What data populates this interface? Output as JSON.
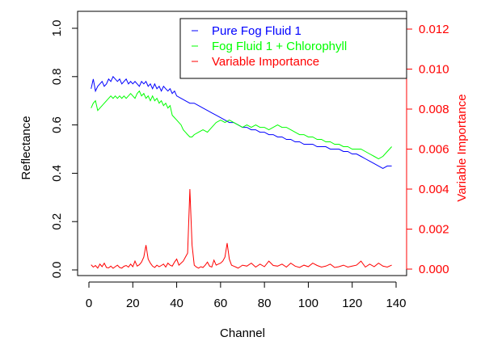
{
  "chart_data": {
    "type": "line",
    "title": "",
    "xlabel": "Channel",
    "ylabel": "Reflectance",
    "y2label": "Variable Importance",
    "xlim": [
      0,
      140
    ],
    "ylim": [
      0,
      1.0
    ],
    "y2lim": [
      0,
      0.012
    ],
    "x_ticks": [
      "0",
      "20",
      "40",
      "60",
      "80",
      "100",
      "120",
      "140"
    ],
    "y_ticks": [
      "0.0",
      "0.2",
      "0.4",
      "0.6",
      "0.8",
      "1.0"
    ],
    "y2_ticks": [
      "0.000",
      "0.002",
      "0.004",
      "0.006",
      "0.008",
      "0.010",
      "0.012"
    ],
    "grid": false,
    "legend_position": "top-right",
    "legend": [
      {
        "label": "Pure Fog Fluid 1",
        "color": "#0000ff"
      },
      {
        "label": "Fog Fluid 1 + Chlorophyll",
        "color": "#00ff00"
      },
      {
        "label": "Variable Importance",
        "color": "#ff0000"
      }
    ],
    "series": [
      {
        "name": "Pure Fog Fluid 1",
        "axis": "left",
        "color": "#0000ff",
        "x": [
          1,
          2,
          3,
          4,
          5,
          6,
          7,
          8,
          9,
          10,
          11,
          12,
          13,
          14,
          15,
          16,
          17,
          18,
          19,
          20,
          21,
          22,
          23,
          24,
          25,
          26,
          27,
          28,
          29,
          30,
          31,
          32,
          33,
          34,
          35,
          36,
          37,
          38,
          39,
          40,
          42,
          44,
          46,
          48,
          50,
          52,
          54,
          56,
          58,
          60,
          62,
          64,
          66,
          68,
          70,
          72,
          74,
          76,
          78,
          80,
          82,
          84,
          86,
          88,
          90,
          92,
          94,
          96,
          98,
          100,
          102,
          104,
          106,
          108,
          110,
          112,
          114,
          116,
          118,
          120,
          122,
          124,
          126,
          128,
          130,
          132,
          134,
          136,
          138
        ],
        "values": [
          0.75,
          0.79,
          0.74,
          0.76,
          0.77,
          0.78,
          0.76,
          0.77,
          0.79,
          0.78,
          0.8,
          0.79,
          0.78,
          0.79,
          0.77,
          0.78,
          0.79,
          0.77,
          0.78,
          0.77,
          0.78,
          0.77,
          0.76,
          0.78,
          0.77,
          0.78,
          0.76,
          0.77,
          0.75,
          0.77,
          0.75,
          0.76,
          0.74,
          0.76,
          0.75,
          0.74,
          0.75,
          0.73,
          0.74,
          0.72,
          0.71,
          0.7,
          0.69,
          0.69,
          0.68,
          0.67,
          0.66,
          0.65,
          0.64,
          0.63,
          0.62,
          0.61,
          0.61,
          0.6,
          0.59,
          0.59,
          0.58,
          0.58,
          0.57,
          0.57,
          0.56,
          0.56,
          0.55,
          0.55,
          0.54,
          0.54,
          0.53,
          0.53,
          0.52,
          0.52,
          0.52,
          0.51,
          0.51,
          0.51,
          0.5,
          0.5,
          0.5,
          0.49,
          0.49,
          0.48,
          0.48,
          0.47,
          0.46,
          0.45,
          0.44,
          0.43,
          0.42,
          0.43,
          0.43
        ]
      },
      {
        "name": "Fog Fluid 1 + Chlorophyll",
        "axis": "left",
        "color": "#00ff00",
        "x": [
          1,
          2,
          3,
          4,
          5,
          6,
          7,
          8,
          9,
          10,
          11,
          12,
          13,
          14,
          15,
          16,
          17,
          18,
          19,
          20,
          21,
          22,
          23,
          24,
          25,
          26,
          27,
          28,
          29,
          30,
          31,
          32,
          33,
          34,
          35,
          36,
          37,
          38,
          39,
          40,
          41,
          42,
          43,
          44,
          45,
          46,
          47,
          48,
          50,
          52,
          54,
          56,
          58,
          60,
          62,
          64,
          66,
          68,
          70,
          72,
          74,
          76,
          78,
          80,
          82,
          84,
          86,
          88,
          90,
          92,
          94,
          96,
          98,
          100,
          102,
          104,
          106,
          108,
          110,
          112,
          114,
          116,
          118,
          120,
          122,
          124,
          126,
          128,
          130,
          132,
          134,
          136,
          138
        ],
        "values": [
          0.67,
          0.69,
          0.7,
          0.66,
          0.67,
          0.68,
          0.69,
          0.7,
          0.71,
          0.72,
          0.71,
          0.72,
          0.71,
          0.72,
          0.71,
          0.72,
          0.71,
          0.72,
          0.73,
          0.72,
          0.71,
          0.73,
          0.74,
          0.72,
          0.73,
          0.71,
          0.72,
          0.7,
          0.72,
          0.7,
          0.71,
          0.69,
          0.7,
          0.68,
          0.69,
          0.67,
          0.68,
          0.64,
          0.63,
          0.62,
          0.61,
          0.6,
          0.58,
          0.57,
          0.56,
          0.55,
          0.55,
          0.56,
          0.57,
          0.58,
          0.57,
          0.59,
          0.61,
          0.62,
          0.61,
          0.62,
          0.61,
          0.6,
          0.59,
          0.6,
          0.59,
          0.6,
          0.59,
          0.59,
          0.58,
          0.59,
          0.6,
          0.59,
          0.59,
          0.58,
          0.57,
          0.56,
          0.56,
          0.55,
          0.55,
          0.54,
          0.54,
          0.53,
          0.53,
          0.52,
          0.52,
          0.51,
          0.51,
          0.5,
          0.5,
          0.5,
          0.49,
          0.48,
          0.47,
          0.46,
          0.47,
          0.49,
          0.51
        ]
      },
      {
        "name": "Variable Importance",
        "axis": "right",
        "color": "#ff0000",
        "x": [
          1,
          2,
          3,
          4,
          5,
          6,
          7,
          8,
          9,
          10,
          11,
          12,
          13,
          14,
          15,
          16,
          17,
          18,
          19,
          20,
          21,
          22,
          23,
          24,
          25,
          26,
          27,
          28,
          29,
          30,
          31,
          32,
          33,
          34,
          35,
          36,
          37,
          38,
          39,
          40,
          41,
          42,
          43,
          44,
          45,
          46,
          47,
          48,
          49,
          50,
          51,
          52,
          53,
          54,
          55,
          56,
          57,
          58,
          59,
          60,
          61,
          62,
          63,
          64,
          65,
          66,
          67,
          68,
          69,
          70,
          72,
          74,
          76,
          78,
          80,
          82,
          84,
          86,
          88,
          90,
          92,
          94,
          96,
          98,
          100,
          102,
          104,
          106,
          108,
          110,
          112,
          114,
          116,
          118,
          120,
          122,
          124,
          126,
          128,
          130,
          132,
          134,
          136,
          138
        ],
        "values": [
          0.00022,
          0.0001,
          0.00018,
          5e-05,
          0.00025,
          0.00012,
          0.0003,
          8e-05,
          6e-05,
          0.00015,
          4e-05,
          0.00012,
          0.0002,
          8e-05,
          5e-05,
          0.00014,
          0.00018,
          0.0001,
          0.00025,
          0.00012,
          0.0004,
          0.00015,
          0.00022,
          0.00035,
          0.0006,
          0.0012,
          0.0005,
          0.0003,
          0.00015,
          8e-05,
          0.0002,
          0.00012,
          0.00018,
          0.00025,
          0.0001,
          0.0003,
          0.0002,
          0.00015,
          0.00035,
          0.0005,
          0.0002,
          0.0003,
          0.0004,
          0.0006,
          0.0008,
          0.004,
          0.0012,
          0.0002,
          0.0001,
          5e-05,
          0.00012,
          8e-05,
          0.0002,
          0.00035,
          0.00015,
          0.0001,
          0.00045,
          0.0002,
          0.00025,
          0.0003,
          0.0004,
          0.0006,
          0.0013,
          0.0005,
          0.0002,
          0.00015,
          0.0001,
          5e-05,
          0.00012,
          0.0002,
          0.00015,
          0.0003,
          0.0001,
          0.00025,
          0.00012,
          0.0004,
          0.00018,
          0.00015,
          0.00025,
          0.0001,
          0.0003,
          0.00015,
          8e-05,
          0.0002,
          0.00012,
          0.0003,
          0.00018,
          0.0001,
          0.00015,
          0.00025,
          8e-05,
          0.00012,
          0.0002,
          0.0001,
          0.00015,
          0.0002,
          0.0004,
          0.0001,
          0.00025,
          0.00012,
          0.0003,
          0.00015,
          0.0001,
          0.0002
        ]
      }
    ]
  }
}
